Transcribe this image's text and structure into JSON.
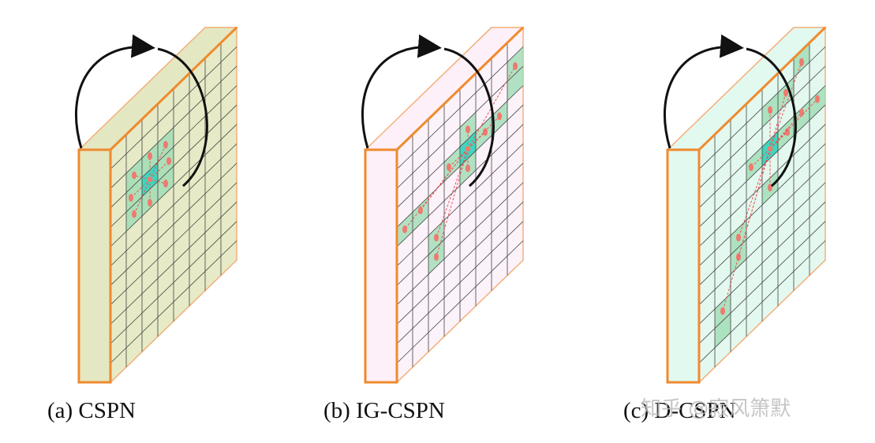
{
  "captions": [
    "(a) CSPN",
    "(b) IG-CSPN",
    "(c) D-CSPN"
  ],
  "watermark": "知乎 @寂风箫默"
}
